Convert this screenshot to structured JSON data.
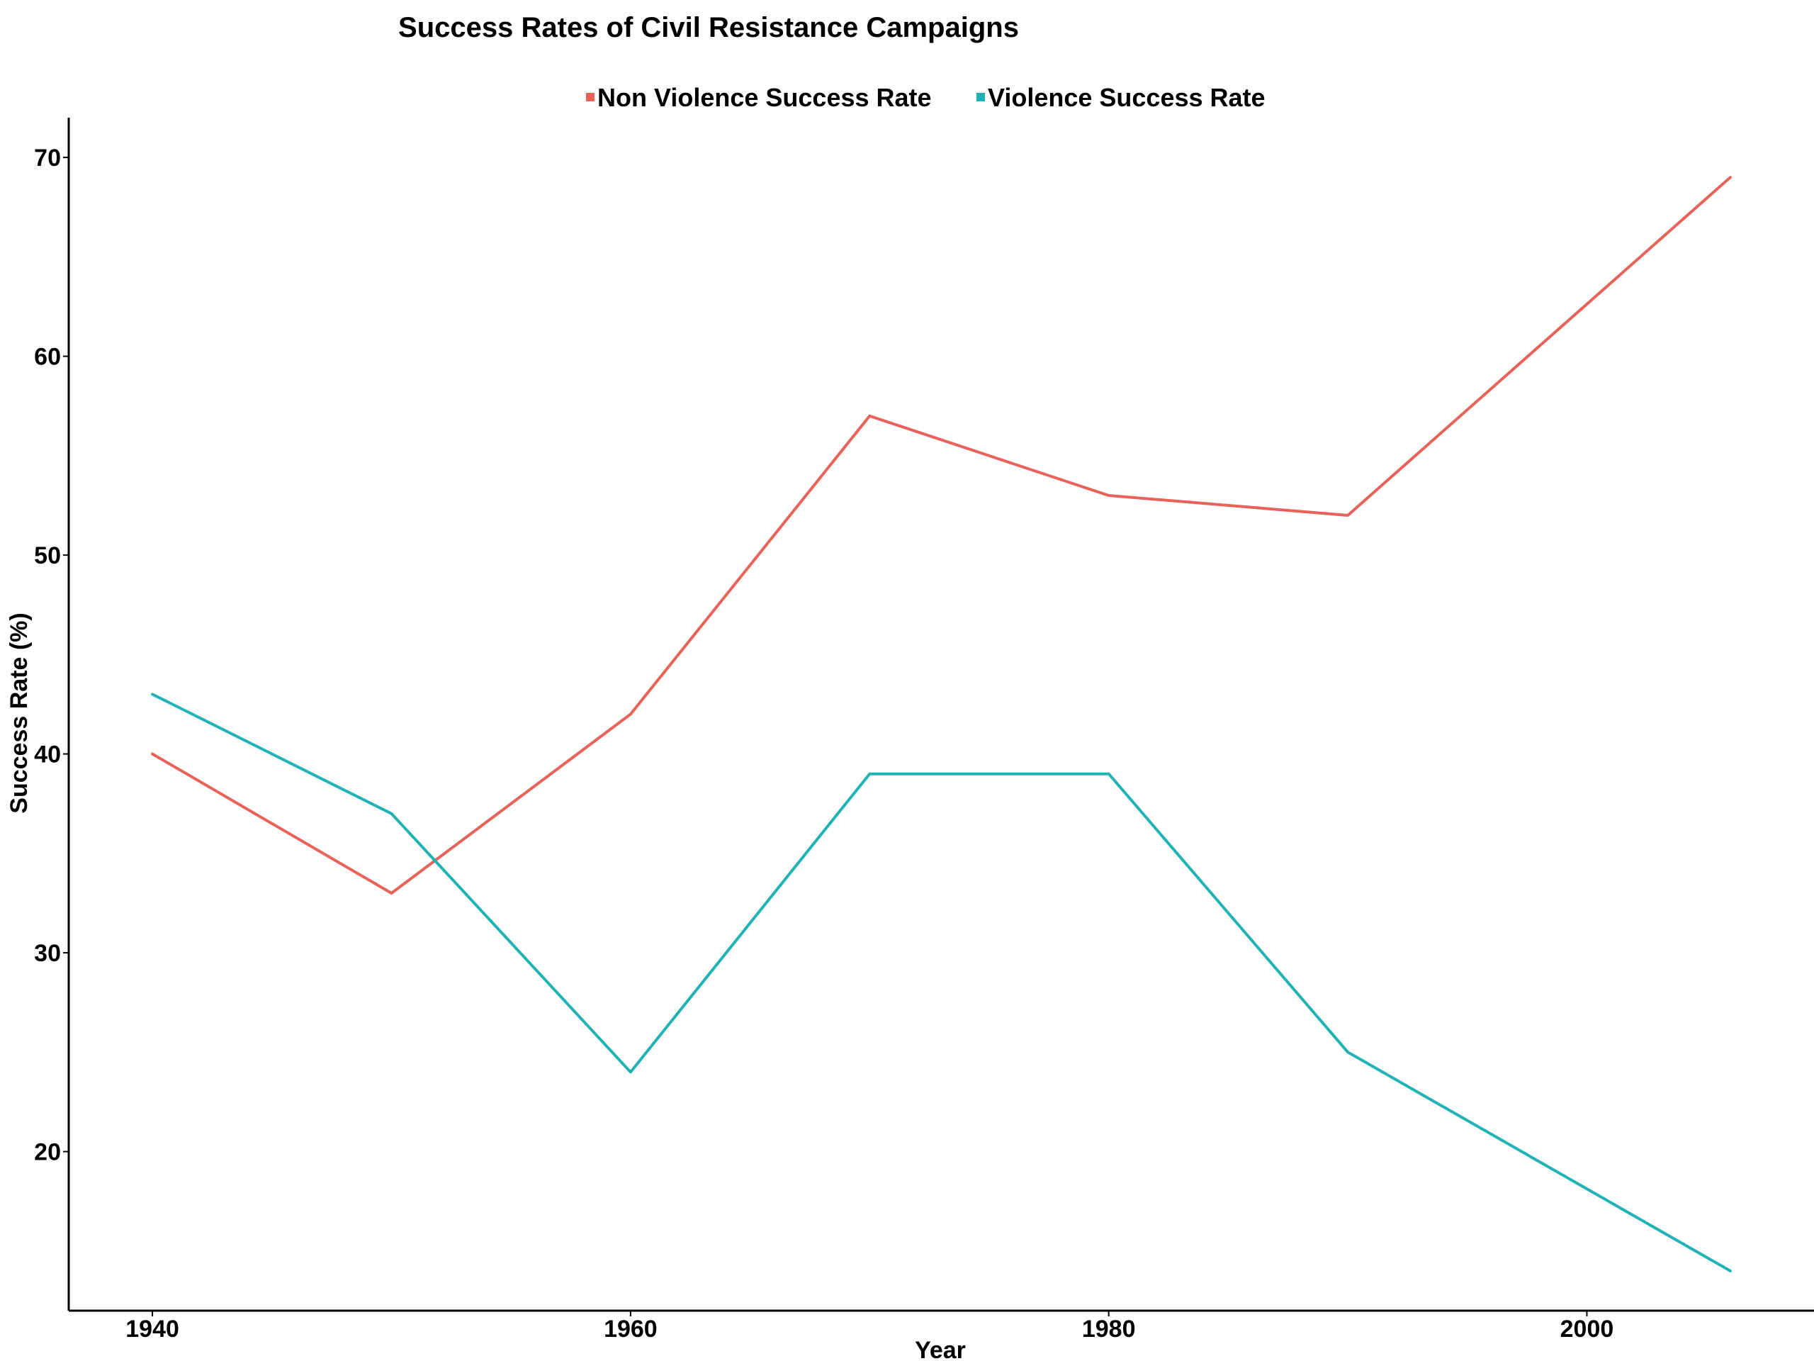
{
  "chart_data": {
    "type": "line",
    "title": "Success Rates of Civil Resistance Campaigns",
    "xlabel": "Year",
    "ylabel": "Success Rate (%)",
    "x": [
      1940,
      1950,
      1960,
      1970,
      1980,
      1990,
      2006
    ],
    "xlim": [
      1936.5,
      2009.5
    ],
    "ylim": [
      12,
      72
    ],
    "xticks": [
      1940,
      1960,
      1980,
      2000
    ],
    "yticks": [
      20,
      30,
      40,
      50,
      60,
      70
    ],
    "grid": false,
    "legend_position": "top-center",
    "series": [
      {
        "name": "Non Violence Success Rate",
        "color": "#E8625A",
        "values": [
          40,
          33,
          42,
          57,
          53,
          52,
          69
        ]
      },
      {
        "name": "Violence Success Rate",
        "color": "#1FB3B6",
        "values": [
          43,
          37,
          24,
          39,
          39,
          25,
          14
        ]
      }
    ]
  }
}
